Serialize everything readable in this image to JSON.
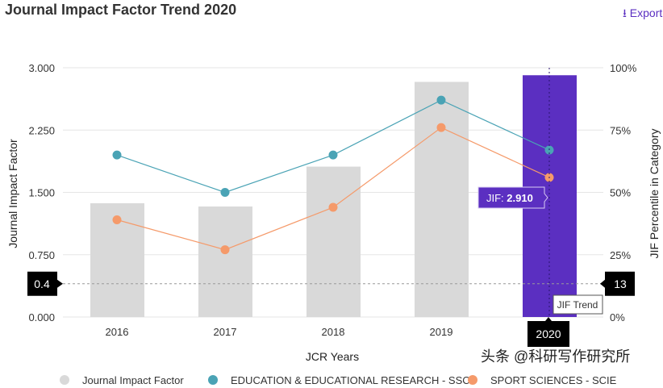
{
  "title": "Journal Impact Factor Trend 2020",
  "export_label": "Export",
  "export_icon": "download-icon",
  "watermark": "头条 @科研写作研究所",
  "chart_data": {
    "type": "bar+line",
    "categories": [
      "2016",
      "2017",
      "2018",
      "2019",
      "2020"
    ],
    "xlabel": "JCR Years",
    "ylabel": "Journal Impact Factor",
    "ylabel_right": "JIF Percentile in Category",
    "ylim": [
      0,
      3
    ],
    "yticks": [
      "0.000",
      "0.750",
      "1.500",
      "2.250",
      "3.000"
    ],
    "ylim_right": [
      0,
      100
    ],
    "yticks_right": [
      "0%",
      "25%",
      "50%",
      "75%",
      "100%"
    ],
    "grid": true,
    "legend_position": "bottom",
    "series": [
      {
        "name": "Journal Impact Factor",
        "type": "bar",
        "axis": "left",
        "color": "#d9d9d9",
        "highlight_color": "#5b2fc1",
        "values": [
          1.37,
          1.33,
          1.81,
          2.83,
          2.91
        ]
      },
      {
        "name": "EDUCATION & EDUCATIONAL RESEARCH - SSCI",
        "type": "line",
        "axis": "right",
        "color": "#4aa3b5",
        "values": [
          65,
          50,
          65,
          87,
          67
        ]
      },
      {
        "name": "SPORT SCIENCES - SCIE",
        "type": "line",
        "axis": "right",
        "color": "#f59a6a",
        "values": [
          39,
          27,
          44,
          76,
          56
        ]
      }
    ],
    "highlight_category": "2020",
    "tooltip": {
      "label": "JIF: ",
      "value": "2.910"
    },
    "crosshair": {
      "left_value": "0.4",
      "right_value": "13",
      "x_label": "2020",
      "hover_label": "JIF Trend"
    }
  }
}
